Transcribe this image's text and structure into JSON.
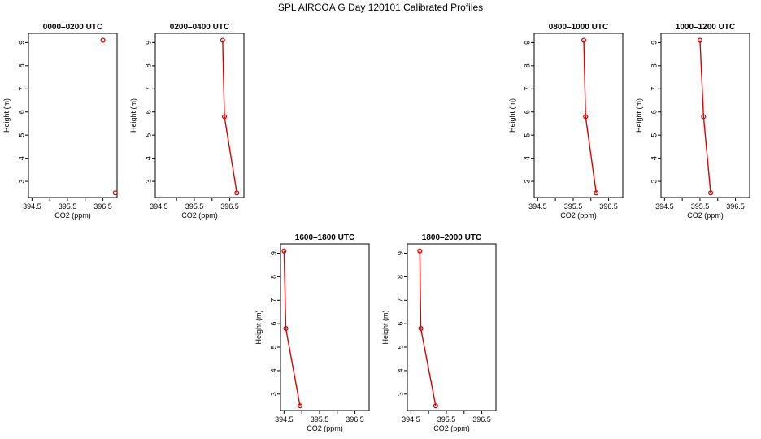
{
  "title": "SPL AIRCOA G  Day 120101  Calibrated Profiles",
  "chart_data": [
    {
      "type": "line",
      "title": "0000–0200 UTC",
      "xlabel": "CO2 (ppm)",
      "ylabel": "Height (m)",
      "xlim": [
        394.4,
        396.9
      ],
      "ylim": [
        2.3,
        9.4
      ],
      "xticks": [
        "394.5",
        "",
        "395.5",
        "",
        "396.5"
      ],
      "yticks": [
        "3",
        "4",
        "5",
        "6",
        "7",
        "8",
        "9"
      ],
      "grid": false,
      "points": [
        {
          "x": 396.5,
          "y": 9.1
        },
        {
          "x": 396.85,
          "y": 2.5
        }
      ],
      "connected": false
    },
    {
      "type": "line",
      "title": "0200–0400 UTC",
      "xlabel": "CO2 (ppm)",
      "ylabel": "Height (m)",
      "xlim": [
        394.4,
        396.9
      ],
      "ylim": [
        2.3,
        9.4
      ],
      "xticks": [
        "394.5",
        "",
        "395.5",
        "",
        "396.5"
      ],
      "yticks": [
        "3",
        "4",
        "5",
        "6",
        "7",
        "8",
        "9"
      ],
      "grid": false,
      "points": [
        {
          "x": 396.3,
          "y": 9.1
        },
        {
          "x": 396.35,
          "y": 5.8
        },
        {
          "x": 396.7,
          "y": 2.5
        }
      ],
      "connected": true
    },
    {
      "type": "line",
      "title": "0800–1000 UTC",
      "xlabel": "CO2 (ppm)",
      "ylabel": "Height (m)",
      "xlim": [
        394.4,
        396.9
      ],
      "ylim": [
        2.3,
        9.4
      ],
      "xticks": [
        "394.5",
        "",
        "395.5",
        "",
        "396.5"
      ],
      "yticks": [
        "3",
        "4",
        "5",
        "6",
        "7",
        "8",
        "9"
      ],
      "grid": false,
      "points": [
        {
          "x": 395.8,
          "y": 9.1
        },
        {
          "x": 395.85,
          "y": 5.8
        },
        {
          "x": 396.15,
          "y": 2.5
        }
      ],
      "connected": true
    },
    {
      "type": "line",
      "title": "1000–1200 UTC",
      "xlabel": "CO2 (ppm)",
      "ylabel": "Height (m)",
      "xlim": [
        394.4,
        396.9
      ],
      "ylim": [
        2.3,
        9.4
      ],
      "xticks": [
        "394.5",
        "",
        "395.5",
        "",
        "396.5"
      ],
      "yticks": [
        "3",
        "4",
        "5",
        "6",
        "7",
        "8",
        "9"
      ],
      "grid": false,
      "points": [
        {
          "x": 395.5,
          "y": 9.1
        },
        {
          "x": 395.6,
          "y": 5.8
        },
        {
          "x": 395.8,
          "y": 2.5
        }
      ],
      "connected": true
    },
    {
      "type": "line",
      "title": "1600–1800 UTC",
      "xlabel": "CO2 (ppm)",
      "ylabel": "Height (m)",
      "xlim": [
        394.4,
        396.9
      ],
      "ylim": [
        2.3,
        9.4
      ],
      "xticks": [
        "394.5",
        "",
        "395.5",
        "",
        "396.5"
      ],
      "yticks": [
        "3",
        "4",
        "5",
        "6",
        "7",
        "8",
        "9"
      ],
      "grid": false,
      "points": [
        {
          "x": 394.5,
          "y": 9.1
        },
        {
          "x": 394.55,
          "y": 5.8
        },
        {
          "x": 394.95,
          "y": 2.5
        }
      ],
      "connected": true
    },
    {
      "type": "line",
      "title": "1800–2000 UTC",
      "xlabel": "CO2 (ppm)",
      "ylabel": "Height (m)",
      "xlim": [
        394.4,
        396.9
      ],
      "ylim": [
        2.3,
        9.4
      ],
      "xticks": [
        "394.5",
        "",
        "395.5",
        "",
        "396.5"
      ],
      "yticks": [
        "3",
        "4",
        "5",
        "6",
        "7",
        "8",
        "9"
      ],
      "grid": false,
      "points": [
        {
          "x": 394.75,
          "y": 9.1
        },
        {
          "x": 394.78,
          "y": 5.8
        },
        {
          "x": 395.2,
          "y": 2.5
        }
      ],
      "connected": true
    }
  ]
}
